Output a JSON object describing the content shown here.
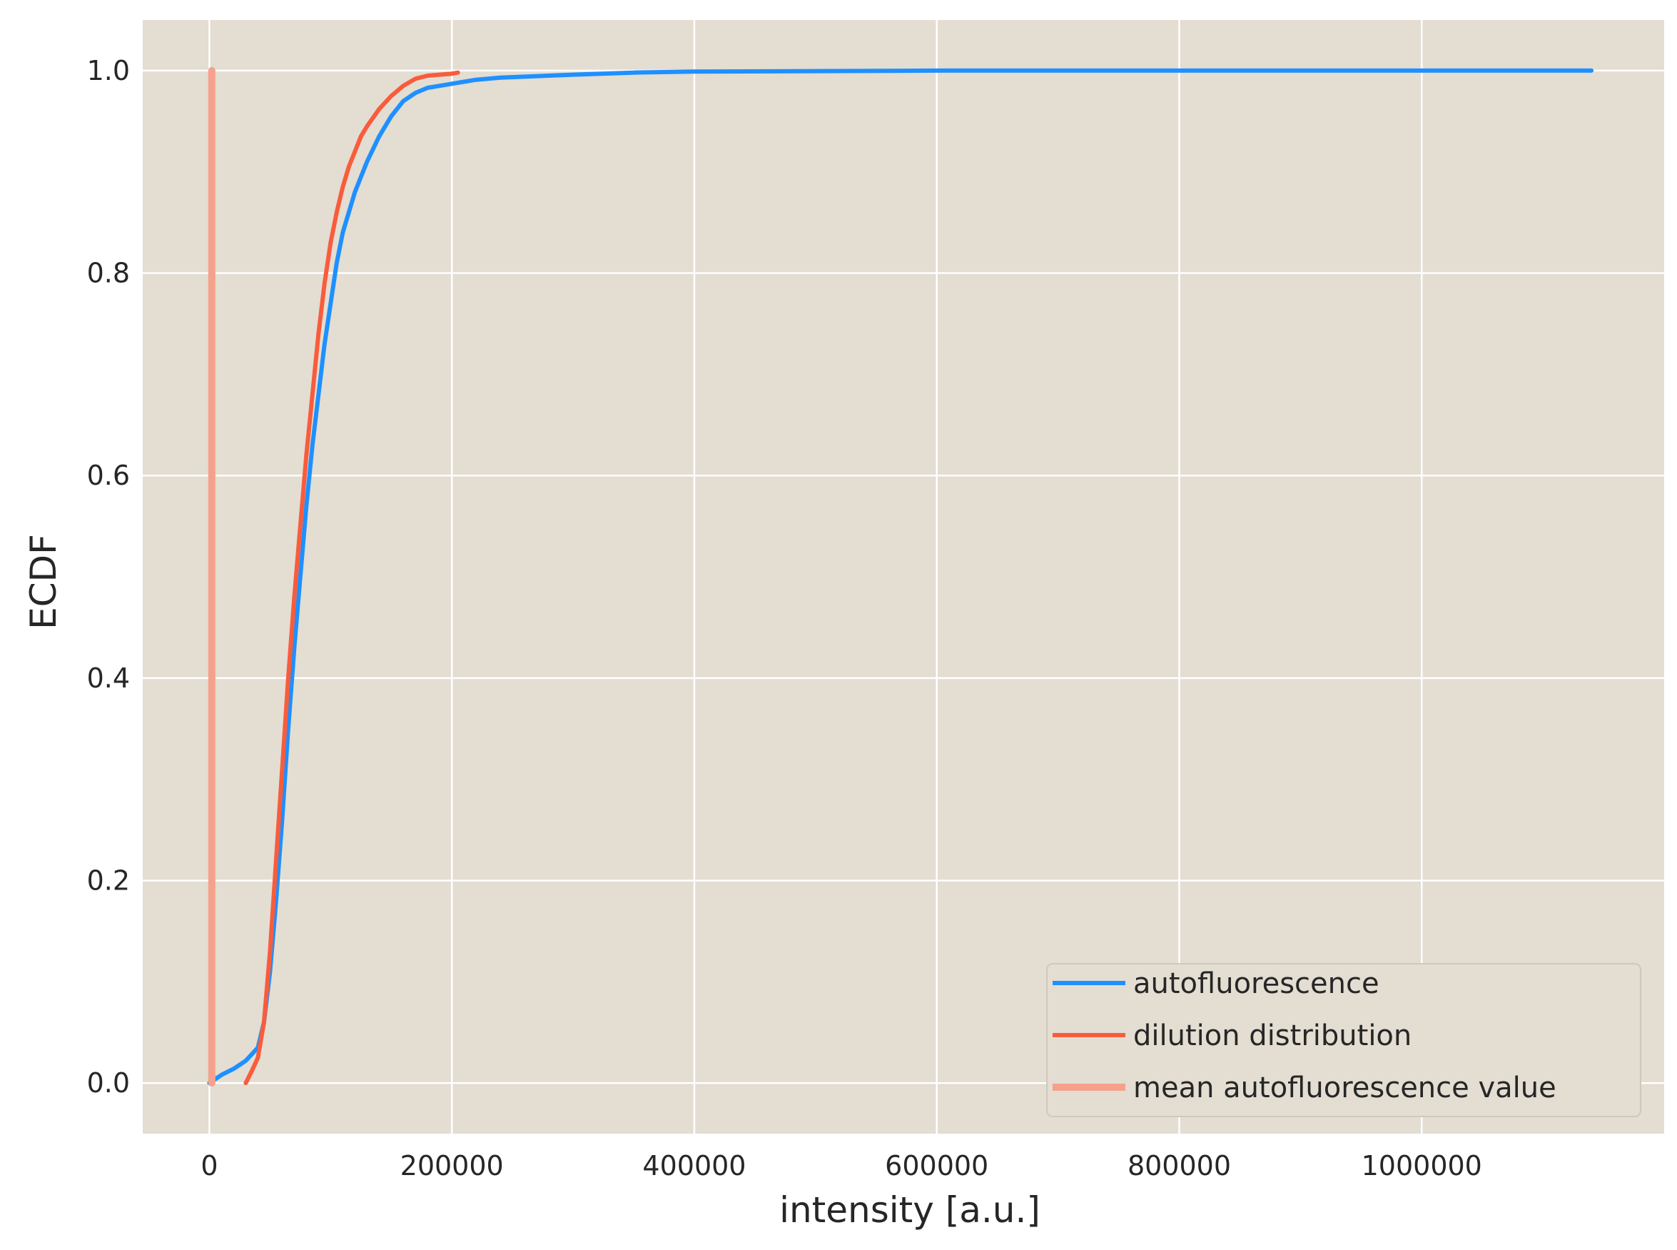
{
  "chart_data": {
    "type": "line",
    "title": "",
    "xlabel": "intensity [a.u.]",
    "ylabel": "ECDF",
    "xlim": [
      -55000,
      1200000
    ],
    "ylim": [
      -0.05,
      1.05
    ],
    "xticks": [
      0,
      200000,
      400000,
      600000,
      800000,
      1000000
    ],
    "xtick_labels": [
      "0",
      "200000",
      "400000",
      "600000",
      "800000",
      "1000000"
    ],
    "yticks": [
      0.0,
      0.2,
      0.4,
      0.6,
      0.8,
      1.0
    ],
    "ytick_labels": [
      "0.0",
      "0.2",
      "0.4",
      "0.6",
      "0.8",
      "1.0"
    ],
    "grid": true,
    "background_color": "#e3ddd2",
    "legend_position": "lower-right",
    "series": [
      {
        "name": "autofluorescence",
        "color": "#1e90ff",
        "x": [
          0,
          10000,
          20000,
          30000,
          40000,
          45000,
          50000,
          55000,
          60000,
          65000,
          70000,
          75000,
          80000,
          85000,
          90000,
          95000,
          100000,
          105000,
          110000,
          115000,
          120000,
          125000,
          130000,
          140000,
          150000,
          160000,
          170000,
          180000,
          190000,
          200000,
          210000,
          220000,
          240000,
          260000,
          300000,
          350000,
          400000,
          500000,
          600000,
          700000,
          1000000,
          1140000
        ],
        "y": [
          0.0,
          0.008,
          0.014,
          0.022,
          0.035,
          0.06,
          0.11,
          0.18,
          0.26,
          0.35,
          0.43,
          0.5,
          0.57,
          0.63,
          0.68,
          0.73,
          0.77,
          0.81,
          0.84,
          0.86,
          0.88,
          0.895,
          0.91,
          0.935,
          0.955,
          0.97,
          0.978,
          0.983,
          0.985,
          0.987,
          0.989,
          0.991,
          0.993,
          0.994,
          0.996,
          0.998,
          0.999,
          0.9995,
          1.0,
          1.0,
          1.0,
          1.0
        ]
      },
      {
        "name": "dilution distribution",
        "color": "#f95c3c",
        "x": [
          30000,
          35000,
          40000,
          45000,
          50000,
          55000,
          60000,
          65000,
          70000,
          75000,
          80000,
          85000,
          90000,
          95000,
          100000,
          105000,
          110000,
          115000,
          120000,
          125000,
          130000,
          140000,
          150000,
          160000,
          170000,
          180000,
          190000,
          200000,
          205000
        ],
        "y": [
          0.0,
          0.012,
          0.025,
          0.06,
          0.13,
          0.22,
          0.31,
          0.4,
          0.48,
          0.55,
          0.62,
          0.68,
          0.74,
          0.79,
          0.83,
          0.86,
          0.885,
          0.905,
          0.92,
          0.935,
          0.945,
          0.962,
          0.975,
          0.985,
          0.992,
          0.995,
          0.996,
          0.997,
          0.998
        ]
      },
      {
        "name": "mean autofluorescence value",
        "color": "#f5a18c",
        "x": [
          2000,
          2000
        ],
        "y": [
          0.0,
          1.0
        ]
      }
    ]
  }
}
